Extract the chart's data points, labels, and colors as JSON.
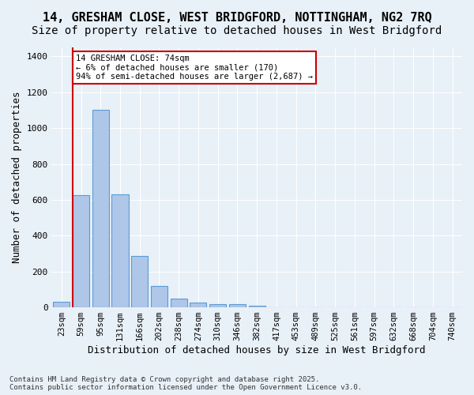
{
  "title1": "14, GRESHAM CLOSE, WEST BRIDGFORD, NOTTINGHAM, NG2 7RQ",
  "title2": "Size of property relative to detached houses in West Bridgford",
  "xlabel": "Distribution of detached houses by size in West Bridgford",
  "ylabel": "Number of detached properties",
  "bin_labels": [
    "23sqm",
    "59sqm",
    "95sqm",
    "131sqm",
    "166sqm",
    "202sqm",
    "238sqm",
    "274sqm",
    "310sqm",
    "346sqm",
    "382sqm",
    "417sqm",
    "453sqm",
    "489sqm",
    "525sqm",
    "561sqm",
    "597sqm",
    "632sqm",
    "668sqm",
    "704sqm",
    "740sqm"
  ],
  "bar_values": [
    30,
    625,
    1100,
    630,
    285,
    120,
    50,
    25,
    20,
    20,
    8,
    0,
    0,
    0,
    0,
    0,
    0,
    0,
    0,
    0,
    0
  ],
  "bar_color": "#aec6e8",
  "bar_edge_color": "#5b9bd5",
  "property_line_color": "#cc0000",
  "property_line_bin_index": 1,
  "annotation_text": "14 GRESHAM CLOSE: 74sqm\n← 6% of detached houses are smaller (170)\n94% of semi-detached houses are larger (2,687) →",
  "annotation_box_color": "#ffffff",
  "annotation_box_edge_color": "#cc0000",
  "ylim": [
    0,
    1450
  ],
  "yticks": [
    0,
    200,
    400,
    600,
    800,
    1000,
    1200,
    1400
  ],
  "background_color": "#e8f0f8",
  "grid_color": "#ffffff",
  "footnote": "Contains HM Land Registry data © Crown copyright and database right 2025.\nContains public sector information licensed under the Open Government Licence v3.0.",
  "title_fontsize": 11,
  "subtitle_fontsize": 10,
  "axis_fontsize": 9,
  "tick_fontsize": 7.5
}
